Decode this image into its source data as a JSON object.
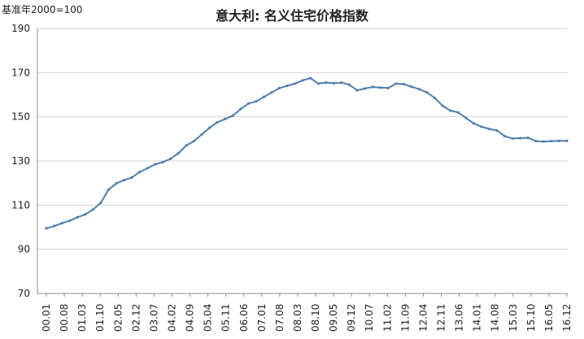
{
  "chart_data": {
    "type": "line",
    "title": "意大利: 名义住宅价格指数",
    "unit_label": "基准年2000=100",
    "ylim": [
      70,
      190
    ],
    "yticks": [
      70,
      90,
      110,
      130,
      150,
      170,
      190
    ],
    "grid": "horizontal",
    "line_color": "#4f7faf",
    "x_tick_labels": [
      "00.01",
      "00.08",
      "01.03",
      "01.10",
      "02.05",
      "02.12",
      "03.07",
      "04.02",
      "04.09",
      "05.04",
      "05.11",
      "06.06",
      "07.01",
      "07.08",
      "08.03",
      "08.10",
      "09.05",
      "09.12",
      "10.07",
      "11.02",
      "11.09",
      "12.04",
      "12.11",
      "13.06",
      "14.01",
      "14.08",
      "15.03",
      "15.10",
      "16.05",
      "16.12"
    ],
    "series": [
      {
        "values": [
          99.5,
          100.5,
          101.8,
          103.0,
          104.5,
          105.8,
          108.0,
          111.0,
          117.0,
          119.8,
          121.3,
          122.5,
          125.0,
          126.7,
          128.5,
          129.5,
          131.0,
          133.5,
          137.0,
          139.0,
          142.0,
          145.0,
          147.5,
          149.0,
          150.5,
          153.5,
          156.0,
          157.0,
          159.0,
          161.0,
          163.0,
          164.0,
          165.0,
          166.5,
          167.5,
          165.0,
          165.5,
          165.2,
          165.5,
          164.5,
          162.0,
          162.8,
          163.5,
          163.2,
          163.0,
          165.0,
          164.8,
          163.6,
          162.5,
          161.0,
          158.5,
          155.0,
          152.8,
          152.0,
          149.5,
          147.0,
          145.5,
          144.5,
          143.8,
          141.2,
          140.2,
          140.3,
          140.5,
          139.0,
          138.8,
          139.0,
          139.1,
          139.1
        ]
      }
    ]
  }
}
